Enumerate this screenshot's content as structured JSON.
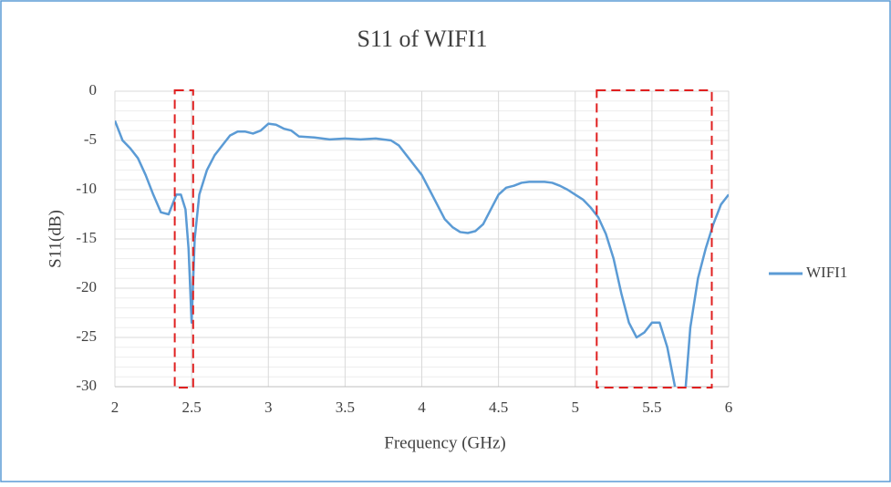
{
  "chart_data": {
    "type": "line",
    "title": "S11 of WIFI1",
    "x_label": "Frequency (GHz)",
    "y_label": "S11(dB)",
    "x": [
      2.0,
      2.05,
      2.1,
      2.15,
      2.2,
      2.25,
      2.3,
      2.35,
      2.4,
      2.43,
      2.46,
      2.48,
      2.5,
      2.52,
      2.55,
      2.6,
      2.65,
      2.7,
      2.75,
      2.8,
      2.85,
      2.9,
      2.95,
      3.0,
      3.05,
      3.1,
      3.15,
      3.2,
      3.3,
      3.4,
      3.5,
      3.6,
      3.7,
      3.8,
      3.85,
      3.9,
      3.95,
      4.0,
      4.05,
      4.1,
      4.15,
      4.2,
      4.25,
      4.3,
      4.35,
      4.4,
      4.45,
      4.5,
      4.55,
      4.6,
      4.65,
      4.7,
      4.8,
      4.85,
      4.9,
      4.95,
      5.0,
      5.05,
      5.1,
      5.15,
      5.2,
      5.25,
      5.3,
      5.35,
      5.4,
      5.45,
      5.5,
      5.55,
      5.6,
      5.65,
      5.68,
      5.72,
      5.75,
      5.8,
      5.85,
      5.9,
      5.95,
      6.0
    ],
    "series": [
      {
        "name": "WIFI1",
        "color": "#5b9bd5",
        "values": [
          -3,
          -5,
          -5.8,
          -6.8,
          -8.5,
          -10.5,
          -12.3,
          -12.5,
          -10.5,
          -10.5,
          -12,
          -16,
          -23.5,
          -15,
          -10.5,
          -8,
          -6.5,
          -5.5,
          -4.5,
          -4.1,
          -4.1,
          -4.3,
          -4.0,
          -3.3,
          -3.4,
          -3.8,
          -4.0,
          -4.6,
          -4.7,
          -4.9,
          -4.8,
          -4.9,
          -4.8,
          -5.0,
          -5.5,
          -6.5,
          -7.5,
          -8.5,
          -10,
          -11.5,
          -13,
          -13.8,
          -14.3,
          -14.4,
          -14.2,
          -13.5,
          -12,
          -10.5,
          -9.8,
          -9.6,
          -9.3,
          -9.2,
          -9.2,
          -9.3,
          -9.6,
          -10,
          -10.5,
          -11,
          -11.8,
          -12.8,
          -14.5,
          -17,
          -20.5,
          -23.5,
          -25,
          -24.5,
          -23.5,
          -23.5,
          -26,
          -30,
          null,
          -30,
          -24,
          -19,
          -16,
          -13.5,
          -11.5,
          -10.5
        ]
      }
    ],
    "xlim": [
      2,
      6
    ],
    "xticks": [
      2,
      2.5,
      3,
      3.5,
      4,
      4.5,
      5,
      5.5,
      6
    ],
    "ylim": [
      -30,
      0
    ],
    "yticks": [
      0,
      -5,
      -10,
      -15,
      -20,
      -25,
      -30
    ],
    "grid": true,
    "legend": "right",
    "highlights": [
      [
        2.39,
        2.51
      ],
      [
        5.14,
        5.89
      ]
    ],
    "highlight_color": "#e02020"
  }
}
